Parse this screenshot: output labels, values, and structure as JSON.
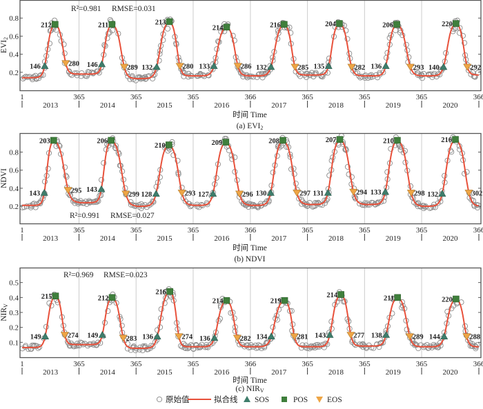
{
  "x_axis": {
    "label": "时间  Time",
    "start_tick": "1",
    "years": [
      "2013",
      "2014",
      "2015",
      "2016",
      "2017",
      "2018",
      "2019",
      "2020"
    ],
    "year_end_ticks": [
      "365",
      "365",
      "365",
      "366",
      "365",
      "365",
      "365",
      "366"
    ]
  },
  "legend": {
    "raw": "原始值",
    "fit": "拟合线",
    "sos": "SOS",
    "pos": "POS",
    "eos": "EOS"
  },
  "colors": {
    "fit_line": "#e8503a",
    "raw_points": "#8a8a8a",
    "sos": "#3e7d6b",
    "pos": "#3f7f3c",
    "eos": "#eea545",
    "grid": "#cccccc"
  },
  "chart_data": [
    {
      "type": "line",
      "ylabel": "EVI2",
      "ylabel_main": "EVI",
      "ylabel_sub": "2",
      "caption": "(a) EVI2",
      "stats": {
        "r2": "R²=0.981",
        "rmse": "RMSE=0.031"
      },
      "stats_placement": "top",
      "ylim": [
        0.0,
        1.0
      ],
      "yticks": [
        0.2,
        0.4,
        0.6,
        0.8
      ],
      "grid": "vertical at year boundaries",
      "baseline": [
        0.14,
        0.18,
        0.13,
        0.16,
        0.16,
        0.17,
        0.16,
        0.16,
        0.17
      ],
      "years": [
        {
          "year": "2013",
          "sos": [
            146,
            0.27
          ],
          "pos": [
            212,
            0.73
          ],
          "eos": [
            280,
            0.3
          ]
        },
        {
          "year": "2014",
          "sos": [
            146,
            0.29
          ],
          "pos": [
            211,
            0.73
          ],
          "eos": [
            289,
            0.26
          ]
        },
        {
          "year": "2015",
          "sos": [
            132,
            0.26
          ],
          "pos": [
            213,
            0.76
          ],
          "eos": [
            280,
            0.27
          ]
        },
        {
          "year": "2016",
          "sos": [
            133,
            0.27
          ],
          "pos": [
            214,
            0.7
          ],
          "eos": [
            286,
            0.27
          ]
        },
        {
          "year": "2017",
          "sos": [
            132,
            0.26
          ],
          "pos": [
            216,
            0.73
          ],
          "eos": [
            285,
            0.26
          ]
        },
        {
          "year": "2018",
          "sos": [
            135,
            0.27
          ],
          "pos": [
            204,
            0.74
          ],
          "eos": [
            282,
            0.26
          ]
        },
        {
          "year": "2019",
          "sos": [
            136,
            0.27
          ],
          "pos": [
            206,
            0.73
          ],
          "eos": [
            293,
            0.26
          ]
        },
        {
          "year": "2020",
          "sos": [
            140,
            0.26
          ],
          "pos": [
            220,
            0.74
          ],
          "eos": [
            292,
            0.26
          ]
        }
      ]
    },
    {
      "type": "line",
      "ylabel": "NDVI",
      "ylabel_main": "NDVI",
      "ylabel_sub": "",
      "caption": "(b) NDVI",
      "stats": {
        "r2": "R²=0.991",
        "rmse": "RMSE=0.027"
      },
      "stats_placement": "bottom",
      "ylim": [
        0.01,
        1.01
      ],
      "yticks": [
        0.2,
        0.4,
        0.6,
        0.8
      ],
      "grid": "vertical at year boundaries",
      "baseline": [
        0.21,
        0.24,
        0.2,
        0.21,
        0.21,
        0.22,
        0.22,
        0.2,
        0.2
      ],
      "years": [
        {
          "year": "2013",
          "sos": [
            143,
            0.35
          ],
          "pos": [
            203,
            0.93
          ],
          "eos": [
            295,
            0.38
          ]
        },
        {
          "year": "2014",
          "sos": [
            143,
            0.39
          ],
          "pos": [
            206,
            0.93
          ],
          "eos": [
            299,
            0.34
          ]
        },
        {
          "year": "2015",
          "sos": [
            128,
            0.34
          ],
          "pos": [
            210,
            0.88
          ],
          "eos": [
            293,
            0.35
          ]
        },
        {
          "year": "2016",
          "sos": [
            127,
            0.34
          ],
          "pos": [
            209,
            0.91
          ],
          "eos": [
            296,
            0.34
          ]
        },
        {
          "year": "2017",
          "sos": [
            130,
            0.35
          ],
          "pos": [
            208,
            0.93
          ],
          "eos": [
            297,
            0.35
          ]
        },
        {
          "year": "2018",
          "sos": [
            131,
            0.35
          ],
          "pos": [
            207,
            0.94
          ],
          "eos": [
            294,
            0.36
          ]
        },
        {
          "year": "2019",
          "sos": [
            133,
            0.36
          ],
          "pos": [
            210,
            0.93
          ],
          "eos": [
            298,
            0.35
          ]
        },
        {
          "year": "2020",
          "sos": [
            132,
            0.34
          ],
          "pos": [
            216,
            0.94
          ],
          "eos": [
            302,
            0.35
          ]
        }
      ]
    },
    {
      "type": "line",
      "ylabel": "NIRV",
      "ylabel_main": "NIR",
      "ylabel_sub": "V",
      "caption": "(c) NIRV",
      "stats": {
        "r2": "R²=0.969",
        "rmse": "RMSE=0.023"
      },
      "stats_placement": "top",
      "ylim": [
        0.0,
        0.6
      ],
      "yticks": [
        0.1,
        0.2,
        0.3,
        0.4,
        0.5
      ],
      "grid": "vertical at year boundaries",
      "baseline": [
        0.065,
        0.085,
        0.06,
        0.07,
        0.07,
        0.07,
        0.075,
        0.07,
        0.07
      ],
      "years": [
        {
          "year": "2013",
          "sos": [
            149,
            0.14
          ],
          "pos": [
            215,
            0.41
          ],
          "eos": [
            274,
            0.15
          ]
        },
        {
          "year": "2014",
          "sos": [
            149,
            0.15
          ],
          "pos": [
            212,
            0.4
          ],
          "eos": [
            283,
            0.13
          ]
        },
        {
          "year": "2015",
          "sos": [
            136,
            0.14
          ],
          "pos": [
            216,
            0.44
          ],
          "eos": [
            274,
            0.14
          ]
        },
        {
          "year": "2016",
          "sos": [
            136,
            0.13
          ],
          "pos": [
            214,
            0.38
          ],
          "eos": [
            282,
            0.13
          ]
        },
        {
          "year": "2017",
          "sos": [
            134,
            0.14
          ],
          "pos": [
            219,
            0.38
          ],
          "eos": [
            281,
            0.14
          ]
        },
        {
          "year": "2018",
          "sos": [
            143,
            0.15
          ],
          "pos": [
            214,
            0.42
          ],
          "eos": [
            277,
            0.15
          ]
        },
        {
          "year": "2019",
          "sos": [
            138,
            0.15
          ],
          "pos": [
            211,
            0.4
          ],
          "eos": [
            289,
            0.14
          ]
        },
        {
          "year": "2020",
          "sos": [
            144,
            0.14
          ],
          "pos": [
            220,
            0.39
          ],
          "eos": [
            288,
            0.14
          ]
        }
      ]
    }
  ]
}
